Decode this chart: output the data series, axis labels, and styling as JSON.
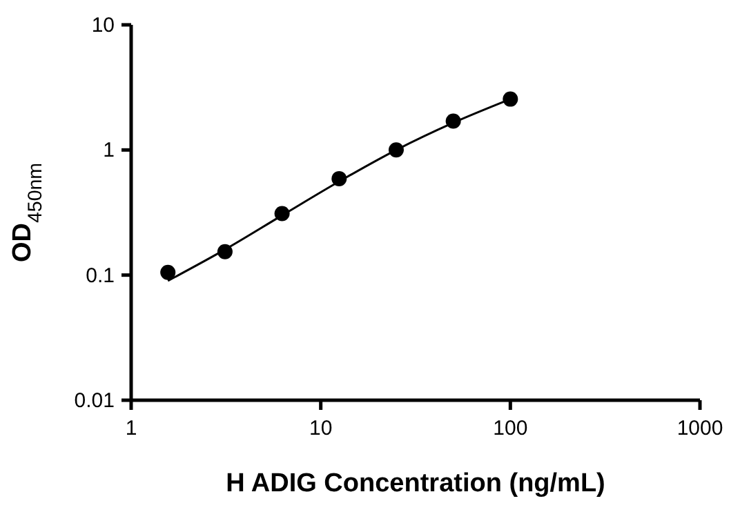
{
  "chart_data": {
    "type": "scatter",
    "xlabel": "H ADIG Concentration (ng/mL)",
    "ylabel": "OD$_{450nm}$",
    "log": "xy",
    "xlim": [
      1,
      1000
    ],
    "xticks": [
      1,
      10,
      100,
      1000
    ],
    "ylim": [
      0.01,
      10
    ],
    "yticks": [
      0.01,
      0.1,
      1,
      10
    ],
    "grid": false,
    "marker": "circle",
    "series": [
      {
        "color": "#000000",
        "x": [
          1.5625,
          3.125,
          6.25,
          12.5,
          25,
          50,
          100
        ],
        "values": [
          0.105,
          0.154,
          0.31,
          0.59,
          1.0,
          1.7,
          2.55
        ]
      },
      {
        "type": "line",
        "color": "#000000",
        "line_style": "solid",
        "marker": "none",
        "x": [
          1.5625,
          3.125,
          6.25,
          12.5,
          25,
          50,
          100
        ],
        "values": [
          0.09,
          0.16,
          0.3,
          0.56,
          1.0,
          1.65,
          2.55
        ]
      }
    ]
  }
}
